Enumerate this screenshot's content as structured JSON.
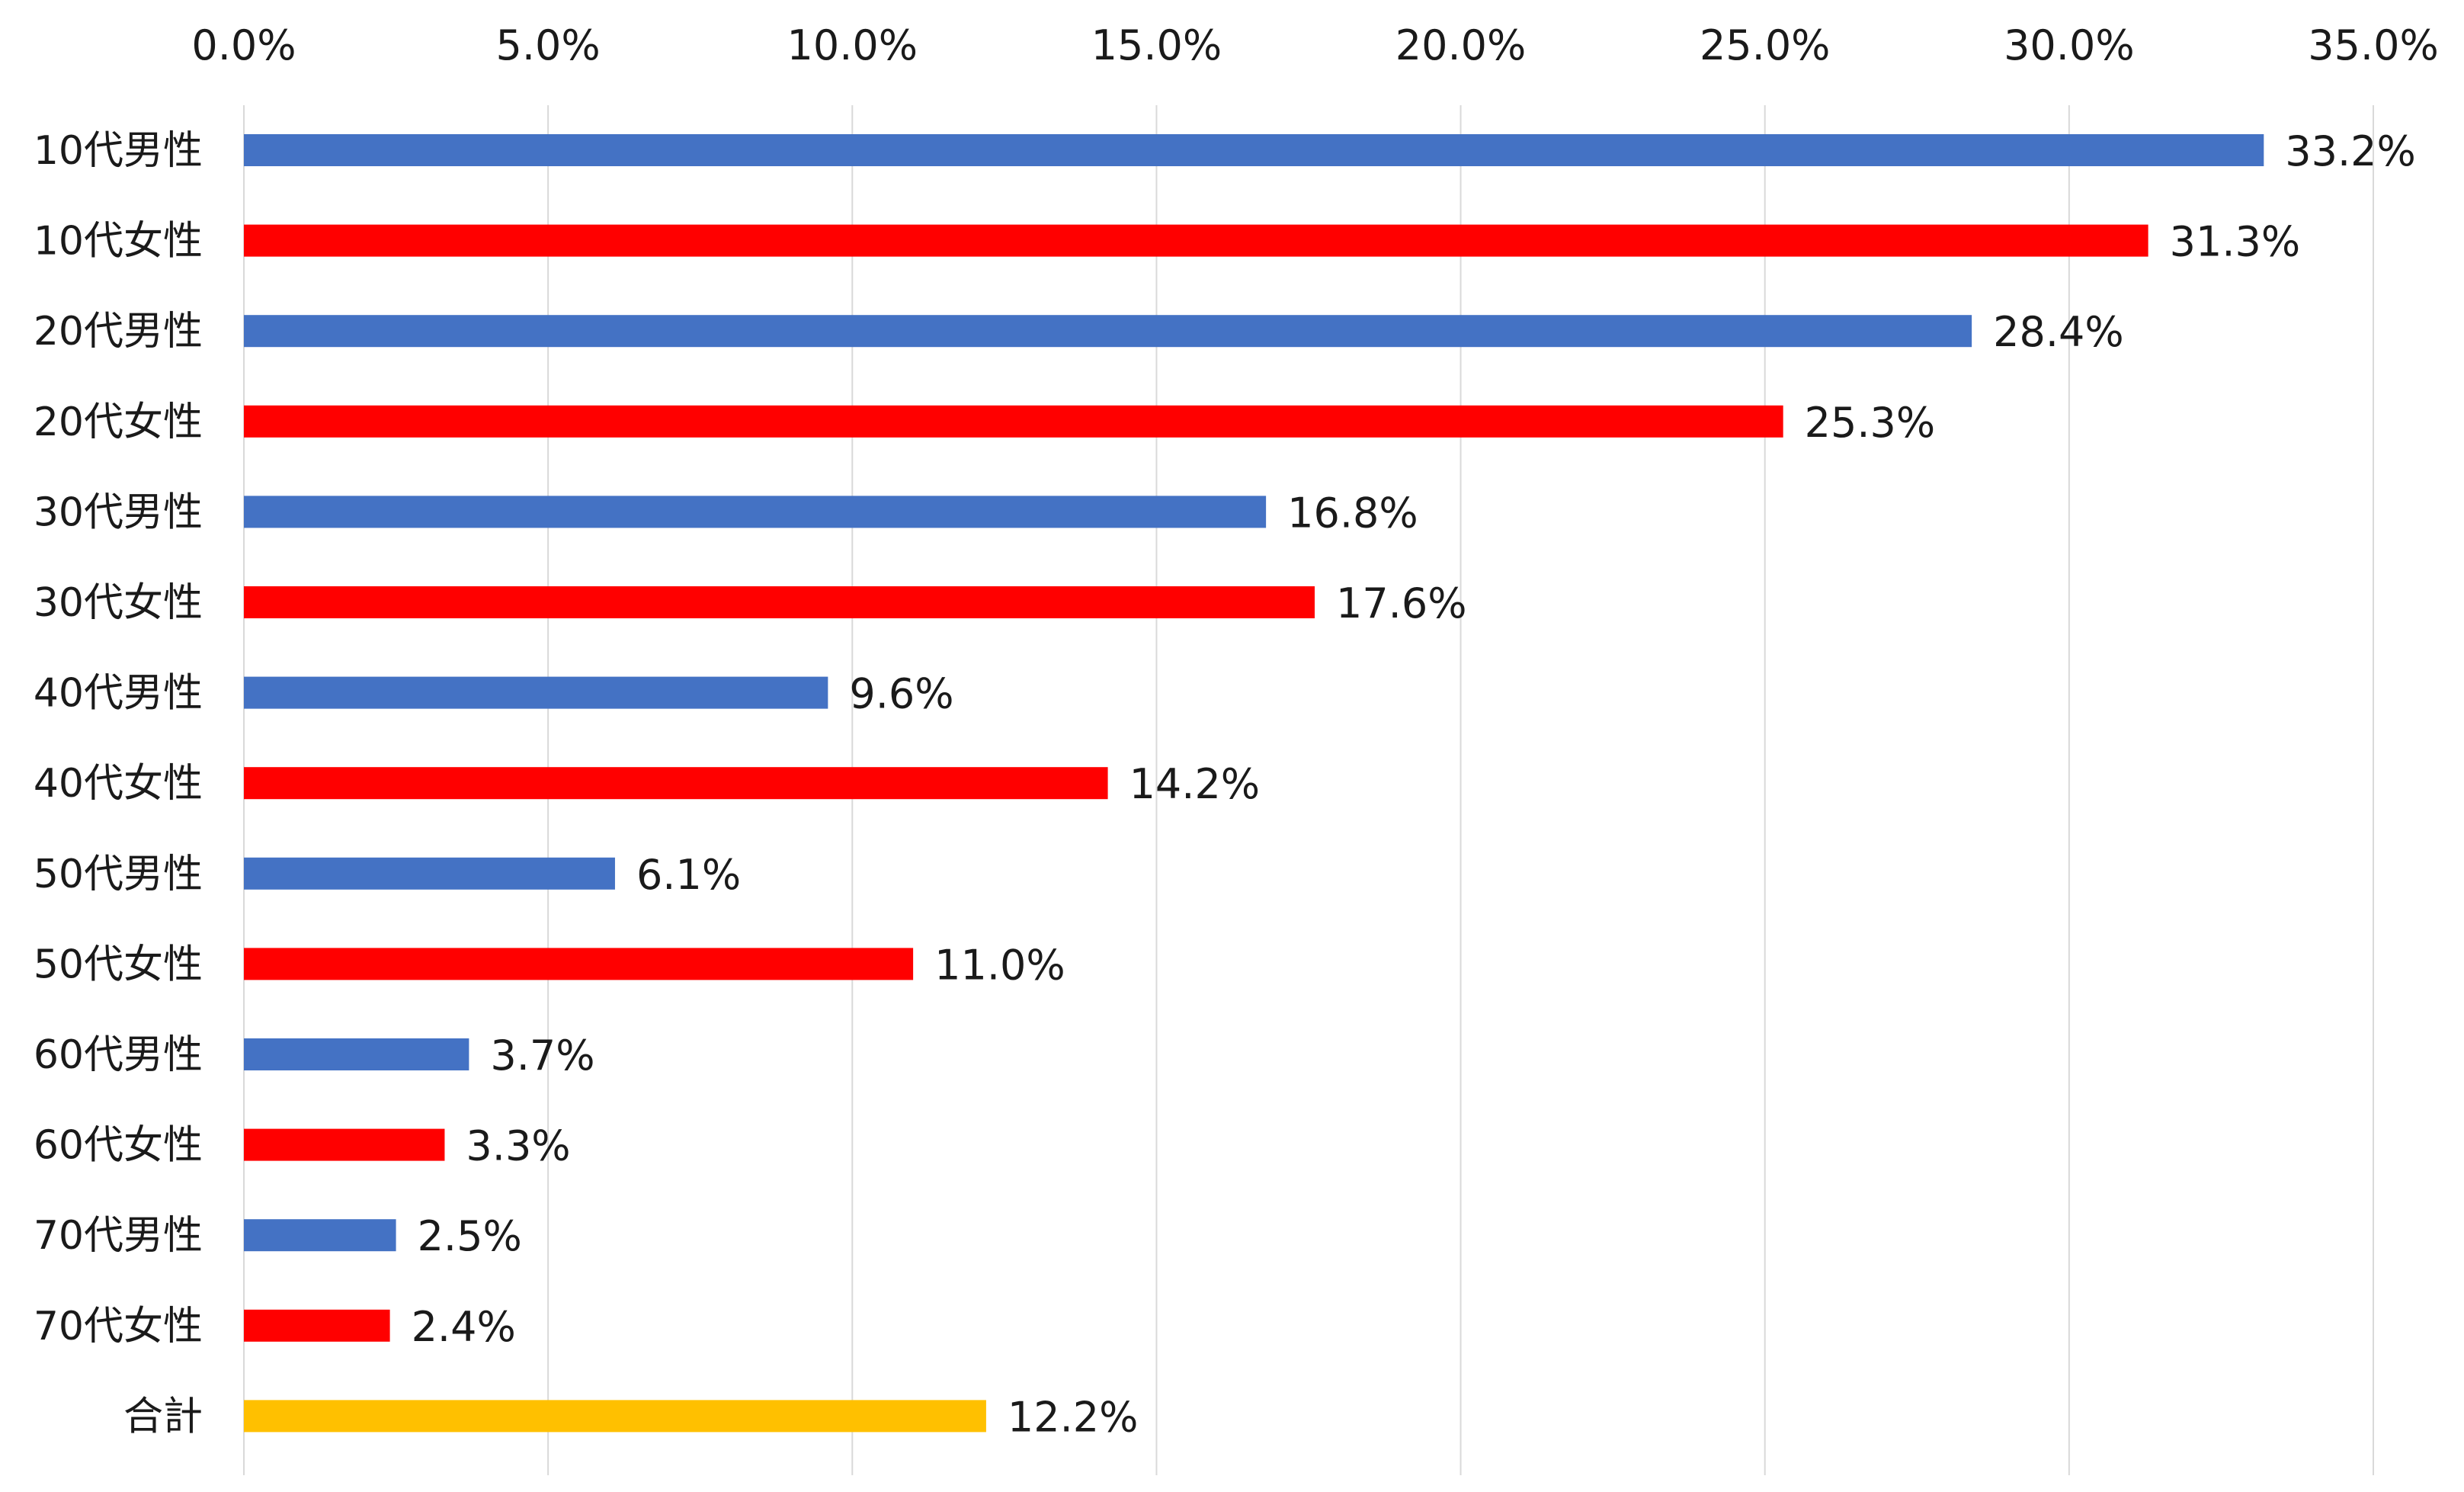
{
  "chart_data": {
    "type": "bar",
    "orientation": "horizontal",
    "title": "",
    "xlabel": "",
    "ylabel": "",
    "xlim": [
      0,
      35
    ],
    "x_ticks": [
      "0.0%",
      "5.0%",
      "10.0%",
      "15.0%",
      "20.0%",
      "25.0%",
      "30.0%",
      "35.0%"
    ],
    "x_tick_values": [
      0,
      5,
      10,
      15,
      20,
      25,
      30,
      35
    ],
    "x_axis_position": "top",
    "grid": true,
    "legend": "none",
    "categories": [
      "10代男性",
      "10代女性",
      "20代男性",
      "20代女性",
      "30代男性",
      "30代女性",
      "40代男性",
      "40代女性",
      "50代男性",
      "50代女性",
      "60代男性",
      "60代女性",
      "70代男性",
      "70代女性",
      "合計"
    ],
    "values": [
      33.2,
      31.3,
      28.4,
      25.3,
      16.8,
      17.6,
      9.6,
      14.2,
      6.1,
      11.0,
      3.7,
      3.3,
      2.5,
      2.4,
      12.2
    ],
    "data_labels": [
      "33.2%",
      "31.3%",
      "28.4%",
      "25.3%",
      "16.8%",
      "17.6%",
      "9.6%",
      "14.2%",
      "6.1%",
      "11.0%",
      "3.7%",
      "3.3%",
      "2.5%",
      "2.4%",
      "12.2%"
    ],
    "bar_colors": [
      "#4472c4",
      "#ff0000",
      "#4472c4",
      "#ff0000",
      "#4472c4",
      "#ff0000",
      "#4472c4",
      "#ff0000",
      "#4472c4",
      "#ff0000",
      "#4472c4",
      "#ff0000",
      "#4472c4",
      "#ff0000",
      "#ffc000"
    ],
    "colors": {
      "male": "#4472c4",
      "female": "#ff0000",
      "total": "#ffc000",
      "grid": "#d9d9d9",
      "text": "#1a1a1a"
    }
  }
}
